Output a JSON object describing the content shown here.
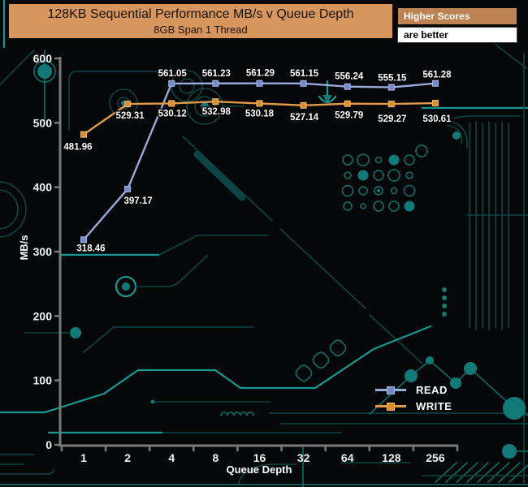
{
  "header": {
    "title": "128KB Sequential Performance MB/s v Queue Depth",
    "subtitle": "8GB Span 1 Thread",
    "note_title": "Higher Scores",
    "note_body": "are better",
    "title_bg": "#d6965e",
    "note_title_bg": "#bd8251"
  },
  "chart_data": {
    "type": "line",
    "title": "128KB Sequential Performance MB/s v Queue Depth",
    "subtitle": "8GB Span 1 Thread",
    "xlabel": "Queue Depth",
    "ylabel": "MB/s",
    "categories": [
      "1",
      "2",
      "4",
      "8",
      "16",
      "32",
      "64",
      "128",
      "256"
    ],
    "ylim": [
      0,
      600
    ],
    "ytick_step": 100,
    "grid": false,
    "legend_position": "inside-bottom-right",
    "series": [
      {
        "name": "READ",
        "values": [
          318.46,
          397.17,
          561.05,
          561.23,
          561.29,
          561.15,
          556.24,
          555.15,
          561.28
        ],
        "line_color": "#97abdc",
        "marker_color": "#7389cb",
        "marker_edge": "#a9bbe2",
        "label_offsets": [
          [
            9,
            14
          ],
          [
            13,
            18
          ],
          [
            1,
            -9
          ],
          [
            1,
            -9
          ],
          [
            1,
            -9
          ],
          [
            1,
            -9
          ],
          [
            2,
            -9
          ],
          [
            1,
            -8
          ],
          [
            2,
            -7
          ]
        ]
      },
      {
        "name": "WRITE",
        "values": [
          481.96,
          529.31,
          530.12,
          532.98,
          530.18,
          527.14,
          529.79,
          529.27,
          530.61
        ],
        "line_color": "#e29a49",
        "marker_color": "#de8d2b",
        "marker_edge": "#f0bb77",
        "label_offsets": [
          [
            -7,
            19
          ],
          [
            3,
            18
          ],
          [
            1,
            16
          ],
          [
            1,
            16
          ],
          [
            0,
            16
          ],
          [
            1,
            18
          ],
          [
            2,
            18
          ],
          [
            1,
            22
          ],
          [
            2,
            23
          ]
        ]
      }
    ]
  },
  "axis": {
    "color": "#7a7a7a",
    "tick_label_color": "#f0f0f0",
    "data_label_color": "#ffffff"
  },
  "colors": {
    "background": "#050708",
    "circuit_dark": "#0c4545",
    "circuit_mid": "#106462",
    "circuit_bright": "#169894"
  }
}
